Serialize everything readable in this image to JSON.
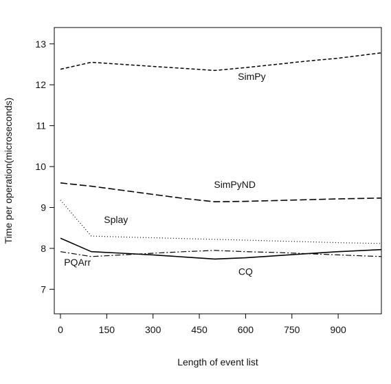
{
  "chart_data": {
    "type": "line",
    "xlabel": "Length of event list",
    "ylabel": "Time per operation(microseconds)",
    "xlim": [
      -20,
      1040
    ],
    "ylim": [
      6.4,
      13.4
    ],
    "xticks": [
      0,
      150,
      300,
      450,
      600,
      750,
      900
    ],
    "yticks": [
      7,
      8,
      9,
      10,
      11,
      12,
      13
    ],
    "grid": false,
    "series": [
      {
        "name": "SimPy",
        "dash": "5,3",
        "stroke_width": 1.5,
        "x": [
          0,
          100,
          200,
          300,
          400,
          500,
          600,
          700,
          800,
          900,
          1040
        ],
        "y": [
          12.38,
          12.55,
          12.5,
          12.45,
          12.4,
          12.35,
          12.42,
          12.5,
          12.58,
          12.65,
          12.78
        ]
      },
      {
        "name": "SimPyND",
        "dash": "10,4",
        "stroke_width": 1.6,
        "x": [
          0,
          100,
          200,
          300,
          400,
          500,
          600,
          700,
          800,
          900,
          1040
        ],
        "y": [
          9.6,
          9.52,
          9.42,
          9.32,
          9.22,
          9.14,
          9.15,
          9.17,
          9.19,
          9.21,
          9.23
        ]
      },
      {
        "name": "Splay",
        "dash": "1,3",
        "stroke_width": 1.2,
        "x": [
          0,
          100,
          200,
          300,
          400,
          500,
          600,
          700,
          800,
          900,
          1040
        ],
        "y": [
          9.18,
          8.3,
          8.28,
          8.26,
          8.24,
          8.22,
          8.2,
          8.18,
          8.16,
          8.14,
          8.12
        ]
      },
      {
        "name": "PQArr",
        "dash": "8,3,2,3",
        "stroke_width": 1.2,
        "x": [
          0,
          100,
          200,
          300,
          400,
          500,
          600,
          700,
          800,
          900,
          1040
        ],
        "y": [
          7.92,
          7.8,
          7.84,
          7.88,
          7.92,
          7.95,
          7.92,
          7.9,
          7.87,
          7.84,
          7.8
        ]
      },
      {
        "name": "CQ",
        "dash": "",
        "stroke_width": 1.6,
        "x": [
          0,
          100,
          200,
          300,
          400,
          500,
          600,
          700,
          800,
          900,
          1040
        ],
        "y": [
          8.25,
          7.92,
          7.88,
          7.84,
          7.79,
          7.74,
          7.77,
          7.82,
          7.87,
          7.92,
          7.97
        ]
      }
    ],
    "annotations": [
      {
        "text": "SimPy",
        "x": 620,
        "y": 12.12
      },
      {
        "text": "SimPyND",
        "x": 565,
        "y": 9.48
      },
      {
        "text": "Splay",
        "x": 180,
        "y": 8.62
      },
      {
        "text": "PQArr",
        "x": 55,
        "y": 7.58
      },
      {
        "text": "CQ",
        "x": 600,
        "y": 7.35
      }
    ]
  }
}
